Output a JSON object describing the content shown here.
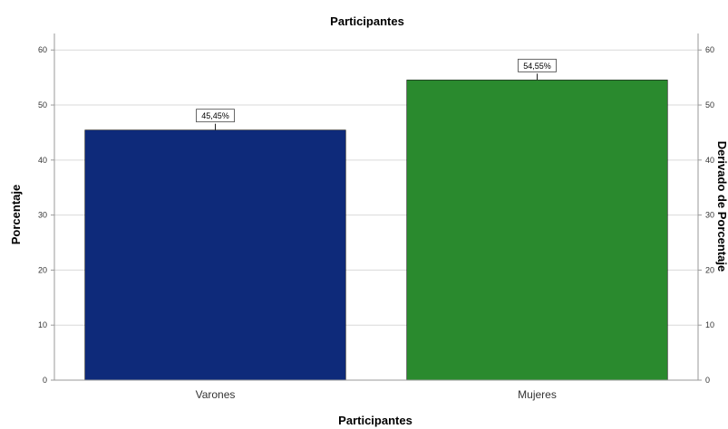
{
  "chart_data": {
    "type": "bar",
    "title": "Participantes",
    "xlabel": "Participantes",
    "ylabel": "Porcentaje",
    "y2label": "Derivado de Porcentaje",
    "categories": [
      "Varones",
      "Mujeres"
    ],
    "values": [
      45.45,
      54.55
    ],
    "data_labels": [
      "45,45%",
      "54,55%"
    ],
    "colors": [
      "#0e2a7a",
      "#2a8a2e"
    ],
    "ylim": [
      0,
      63
    ],
    "yticks": [
      0,
      10,
      20,
      30,
      40,
      50,
      60
    ],
    "ytick_labels": [
      "0",
      "10",
      "20",
      "30",
      "40",
      "50",
      "60"
    ],
    "grid": true,
    "error_bars": true
  }
}
